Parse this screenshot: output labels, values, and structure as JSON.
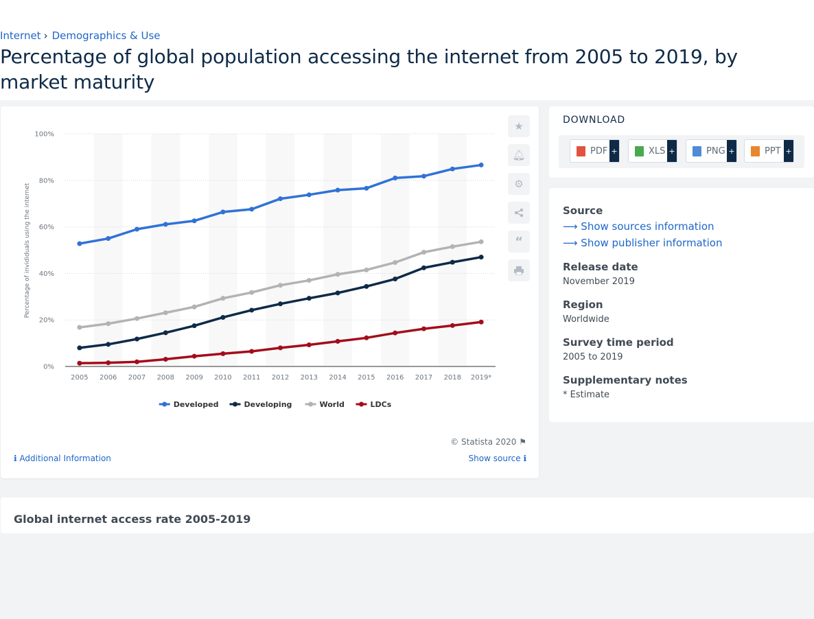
{
  "breadcrumb": {
    "item1": "Internet",
    "item2": "Demographics & Use"
  },
  "page_title": "Percentage of global population accessing the internet from 2005 to 2019, by market maturity",
  "chart_data": {
    "type": "line",
    "categories": [
      "2005",
      "2006",
      "2007",
      "2008",
      "2009",
      "2010",
      "2011",
      "2012",
      "2013",
      "2014",
      "2015",
      "2016",
      "2017",
      "2018",
      "2019*"
    ],
    "ylabel": "Percentage of invididuals using the internet",
    "ylim": [
      0,
      100
    ],
    "yticks": [
      "0%",
      "20%",
      "40%",
      "60%",
      "80%",
      "100%"
    ],
    "grid": true,
    "legend_position": "bottom",
    "series": [
      {
        "name": "Developed",
        "color": "#3072d6",
        "values": [
          52.8,
          55.0,
          59.0,
          61.1,
          62.6,
          66.4,
          67.6,
          72.1,
          73.8,
          75.8,
          76.6,
          81.0,
          81.8,
          84.9,
          86.6
        ]
      },
      {
        "name": "Developing",
        "color": "#0e2a47",
        "values": [
          8.0,
          9.5,
          11.8,
          14.5,
          17.5,
          21.1,
          24.2,
          26.9,
          29.3,
          31.6,
          34.4,
          37.6,
          42.4,
          44.8,
          47.0
        ]
      },
      {
        "name": "World",
        "color": "#b3b3b3",
        "values": [
          16.8,
          18.4,
          20.6,
          23.1,
          25.6,
          29.3,
          31.8,
          34.9,
          37.0,
          39.6,
          41.5,
          44.7,
          49.1,
          51.5,
          53.6
        ]
      },
      {
        "name": "LDCs",
        "color": "#a30d1b",
        "values": [
          1.4,
          1.6,
          2.0,
          3.1,
          4.4,
          5.5,
          6.5,
          8.0,
          9.3,
          10.8,
          12.3,
          14.4,
          16.2,
          17.6,
          19.1
        ]
      }
    ]
  },
  "chart_footer": {
    "copyright": "© Statista 2020",
    "additional_info": "Additional Information",
    "show_source": "Show source"
  },
  "tools": {
    "icons": [
      "star-icon",
      "bell-icon",
      "gear-icon",
      "share-icon",
      "quote-icon",
      "print-icon"
    ]
  },
  "download": {
    "title": "DOWNLOAD",
    "formats": [
      {
        "label": "PDF",
        "color": "#e0533e"
      },
      {
        "label": "XLS",
        "color": "#4aa84f"
      },
      {
        "label": "PNG",
        "color": "#4f8bd6"
      },
      {
        "label": "PPT",
        "color": "#e8862f"
      }
    ],
    "plus": "+"
  },
  "info": {
    "source_heading": "Source",
    "show_sources": "Show sources information",
    "show_publisher": "Show publisher information",
    "release_heading": "Release date",
    "release_value": "November 2019",
    "region_heading": "Region",
    "region_value": "Worldwide",
    "survey_heading": "Survey time period",
    "survey_value": "2005 to 2019",
    "notes_heading": "Supplementary notes",
    "notes_value": "* Estimate"
  },
  "related": {
    "title": "Global internet access rate 2005-2019"
  }
}
